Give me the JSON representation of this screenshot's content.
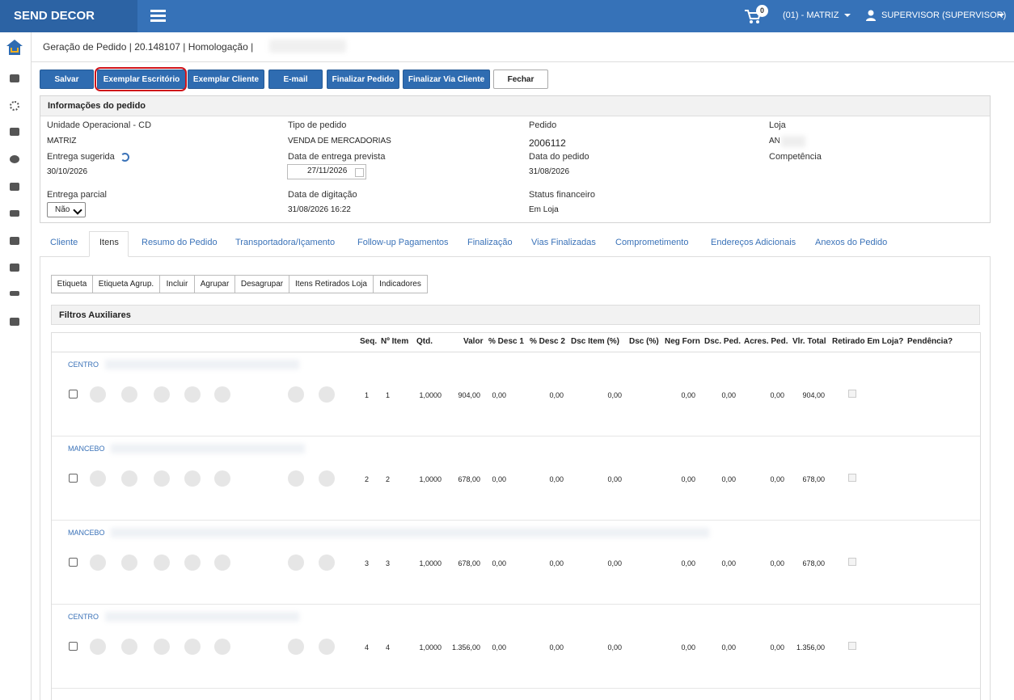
{
  "topbar": {
    "brand": "SEND DECOR",
    "cart_count": "0",
    "store": "(01) - MATRIZ",
    "user": "SUPERVISOR (SUPERVISOR)"
  },
  "breadcrumb": "Geração de Pedido | 20.148107 | Homologação |",
  "buttons": [
    "Salvar",
    "Exemplar Escritório",
    "Exemplar Cliente",
    "E-mail",
    "Finalizar Pedido",
    "Finalizar Via Cliente",
    "Fechar"
  ],
  "info": {
    "title": "Informações do pedido",
    "fields": [
      {
        "label": "Unidade Operacional - CD",
        "value": "MATRIZ"
      },
      {
        "label": "Tipo de pedido",
        "value": "VENDA DE MERCADORIAS"
      },
      {
        "label": "Pedido",
        "value": "2006112"
      },
      {
        "label": "Loja",
        "value": "AN"
      },
      {
        "label": "Entrega sugerida",
        "value": "30/10/2026"
      },
      {
        "label": "Data de entrega prevista",
        "value": "27/11/2026"
      },
      {
        "label": "Data do pedido",
        "value": "31/08/2026"
      },
      {
        "label": "Competência"
      },
      {
        "label": "Entrega parcial",
        "value": "Não"
      },
      {
        "label": "Data de digitação",
        "value": "31/08/2026 16:22"
      },
      {
        "label": "Status financeiro",
        "value": "Em Loja"
      }
    ]
  },
  "tabs": [
    "Cliente",
    "Itens",
    "Resumo do Pedido",
    "Transportadora/Içamento",
    "Follow-up Pagamentos",
    "Finalização",
    "Vias Finalizadas",
    "Comprometimento",
    "Endereços Adicionais",
    "Anexos do Pedido"
  ],
  "toolbar": [
    "Etiqueta",
    "Etiqueta Agrup.",
    "Incluir",
    "Agrupar",
    "Desagrupar",
    "Itens Retirados Loja",
    "Indicadores"
  ],
  "filters_title": "Filtros Auxiliares",
  "table": {
    "headers": [
      "Seq.",
      "Nº Item",
      "Qtd.",
      "Valor",
      "% Desc 1",
      "% Desc 2",
      "Dsc Item (%)",
      "Dsc (%)",
      "Neg Forn",
      "Dsc. Ped.",
      "Acres. Ped.",
      "Vlr. Total",
      "Retirado Em Loja?",
      "Pendência?"
    ],
    "rows": [
      {
        "name": "CENTRO",
        "seq": "1",
        "item": "1",
        "qtd": "1,0000",
        "valor": "904,00",
        "desc1": "0,00",
        "desc2": "0,00",
        "dsc_item": "0,00",
        "neg_forn": "0,00",
        "dsc_ped": "0,00",
        "acres_ped": "0,00",
        "total": "904,00"
      },
      {
        "name": "MANCEBO",
        "seq": "2",
        "item": "2",
        "qtd": "1,0000",
        "valor": "678,00",
        "desc1": "0,00",
        "desc2": "0,00",
        "dsc_item": "0,00",
        "neg_forn": "0,00",
        "dsc_ped": "0,00",
        "acres_ped": "0,00",
        "total": "678,00"
      },
      {
        "name": "MANCEBO",
        "seq": "3",
        "item": "3",
        "qtd": "1,0000",
        "valor": "678,00",
        "desc1": "0,00",
        "desc2": "0,00",
        "dsc_item": "0,00",
        "neg_forn": "0,00",
        "dsc_ped": "0,00",
        "acres_ped": "0,00",
        "total": "678,00"
      },
      {
        "name": "CENTRO",
        "seq": "4",
        "item": "4",
        "qtd": "1,0000",
        "valor": "1.356,00",
        "desc1": "0,00",
        "desc2": "0,00",
        "dsc_item": "0,00",
        "neg_forn": "0,00",
        "dsc_ped": "0,00",
        "acres_ped": "0,00",
        "total": "1.356,00"
      }
    ]
  }
}
